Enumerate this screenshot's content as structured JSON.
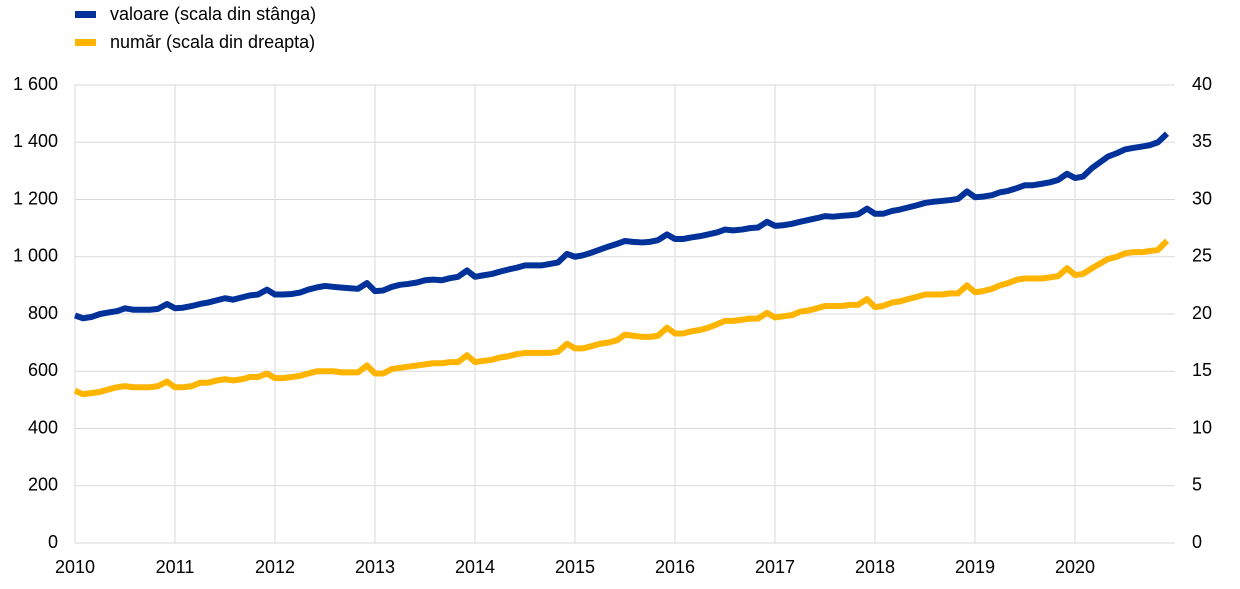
{
  "chart_data": {
    "type": "line",
    "x": [
      2010,
      2010.08,
      2010.17,
      2010.25,
      2010.33,
      2010.42,
      2010.5,
      2010.58,
      2010.67,
      2010.75,
      2010.83,
      2010.92,
      2011,
      2011.08,
      2011.17,
      2011.25,
      2011.33,
      2011.42,
      2011.5,
      2011.58,
      2011.67,
      2011.75,
      2011.83,
      2011.92,
      2012,
      2012.08,
      2012.17,
      2012.25,
      2012.33,
      2012.42,
      2012.5,
      2012.58,
      2012.67,
      2012.75,
      2012.83,
      2012.92,
      2013,
      2013.08,
      2013.17,
      2013.25,
      2013.33,
      2013.42,
      2013.5,
      2013.58,
      2013.67,
      2013.75,
      2013.83,
      2013.92,
      2014,
      2014.08,
      2014.17,
      2014.25,
      2014.33,
      2014.42,
      2014.5,
      2014.58,
      2014.67,
      2014.75,
      2014.83,
      2014.92,
      2015,
      2015.08,
      2015.17,
      2015.25,
      2015.33,
      2015.42,
      2015.5,
      2015.58,
      2015.67,
      2015.75,
      2015.83,
      2015.92,
      2016,
      2016.08,
      2016.17,
      2016.25,
      2016.33,
      2016.42,
      2016.5,
      2016.58,
      2016.67,
      2016.75,
      2016.83,
      2016.92,
      2017,
      2017.08,
      2017.17,
      2017.25,
      2017.33,
      2017.42,
      2017.5,
      2017.58,
      2017.67,
      2017.75,
      2017.83,
      2017.92,
      2018,
      2018.08,
      2018.17,
      2018.25,
      2018.33,
      2018.42,
      2018.5,
      2018.58,
      2018.67,
      2018.75,
      2018.83,
      2018.92,
      2019,
      2019.08,
      2019.17,
      2019.25,
      2019.33,
      2019.42,
      2019.5,
      2019.58,
      2019.67,
      2019.75,
      2019.83,
      2019.92,
      2020,
      2020.08,
      2020.17,
      2020.25,
      2020.33,
      2020.42,
      2020.5,
      2020.58,
      2020.67,
      2020.75,
      2020.83,
      2020.92
    ],
    "series": [
      {
        "name": "valoare (scala din stânga)",
        "color": "#003299",
        "axis": "y",
        "values": [
          795,
          785,
          790,
          800,
          805,
          810,
          820,
          815,
          815,
          815,
          818,
          835,
          820,
          822,
          828,
          835,
          840,
          848,
          855,
          850,
          858,
          865,
          868,
          885,
          868,
          868,
          870,
          875,
          885,
          893,
          898,
          895,
          892,
          890,
          888,
          908,
          880,
          882,
          895,
          902,
          905,
          910,
          918,
          920,
          918,
          925,
          930,
          952,
          930,
          935,
          940,
          948,
          955,
          962,
          970,
          970,
          970,
          975,
          980,
          1010,
          1000,
          1005,
          1015,
          1025,
          1035,
          1045,
          1055,
          1052,
          1050,
          1052,
          1058,
          1078,
          1062,
          1062,
          1068,
          1072,
          1078,
          1085,
          1095,
          1092,
          1095,
          1100,
          1102,
          1122,
          1108,
          1110,
          1115,
          1122,
          1128,
          1135,
          1142,
          1140,
          1143,
          1145,
          1148,
          1168,
          1150,
          1150,
          1160,
          1165,
          1172,
          1180,
          1188,
          1192,
          1195,
          1198,
          1202,
          1228,
          1208,
          1210,
          1215,
          1225,
          1230,
          1240,
          1250,
          1250,
          1255,
          1260,
          1268,
          1290,
          1275,
          1280,
          1310,
          1330,
          1350,
          1362,
          1375,
          1380,
          1385,
          1390,
          1400,
          1430
        ]
      },
      {
        "name": "număr (scala din dreapta)",
        "color": "#ffb400",
        "axis": "y2",
        "values": [
          13.3,
          13.0,
          13.1,
          13.2,
          13.4,
          13.6,
          13.7,
          13.6,
          13.6,
          13.6,
          13.7,
          14.1,
          13.6,
          13.6,
          13.7,
          14.0,
          14.0,
          14.2,
          14.3,
          14.2,
          14.3,
          14.5,
          14.5,
          14.8,
          14.4,
          14.4,
          14.5,
          14.6,
          14.8,
          15.0,
          15.0,
          15.0,
          14.9,
          14.9,
          14.9,
          15.5,
          14.8,
          14.8,
          15.2,
          15.3,
          15.4,
          15.5,
          15.6,
          15.7,
          15.7,
          15.8,
          15.8,
          16.4,
          15.8,
          15.9,
          16.0,
          16.2,
          16.3,
          16.5,
          16.6,
          16.6,
          16.6,
          16.6,
          16.7,
          17.4,
          17.0,
          17.0,
          17.2,
          17.4,
          17.5,
          17.7,
          18.2,
          18.1,
          18.0,
          18.0,
          18.1,
          18.8,
          18.3,
          18.3,
          18.5,
          18.6,
          18.8,
          19.1,
          19.4,
          19.4,
          19.5,
          19.6,
          19.6,
          20.1,
          19.7,
          19.8,
          19.9,
          20.2,
          20.3,
          20.5,
          20.7,
          20.7,
          20.7,
          20.8,
          20.8,
          21.3,
          20.6,
          20.7,
          21.0,
          21.1,
          21.3,
          21.5,
          21.7,
          21.7,
          21.7,
          21.8,
          21.8,
          22.5,
          21.9,
          22.0,
          22.2,
          22.5,
          22.7,
          23.0,
          23.1,
          23.1,
          23.1,
          23.2,
          23.3,
          24.0,
          23.4,
          23.5,
          24.0,
          24.4,
          24.8,
          25.0,
          25.3,
          25.4,
          25.4,
          25.5,
          25.6,
          26.4
        ]
      }
    ],
    "xlim": [
      2010,
      2021
    ],
    "xticks": [
      2010,
      2011,
      2012,
      2013,
      2014,
      2015,
      2016,
      2017,
      2018,
      2019,
      2020
    ],
    "ylim": [
      0,
      1600
    ],
    "yticks": [
      0,
      200,
      400,
      600,
      800,
      {
        "value": 1000,
        "label": "1 000"
      },
      {
        "value": 1200,
        "label": "1 200"
      },
      {
        "value": 1400,
        "label": "1 400"
      },
      {
        "value": 1600,
        "label": "1 600"
      }
    ],
    "y2lim": [
      0,
      40
    ],
    "y2ticks": [
      0,
      5,
      10,
      15,
      20,
      25,
      30,
      35,
      40
    ],
    "grid": true,
    "legend": "top-left"
  }
}
